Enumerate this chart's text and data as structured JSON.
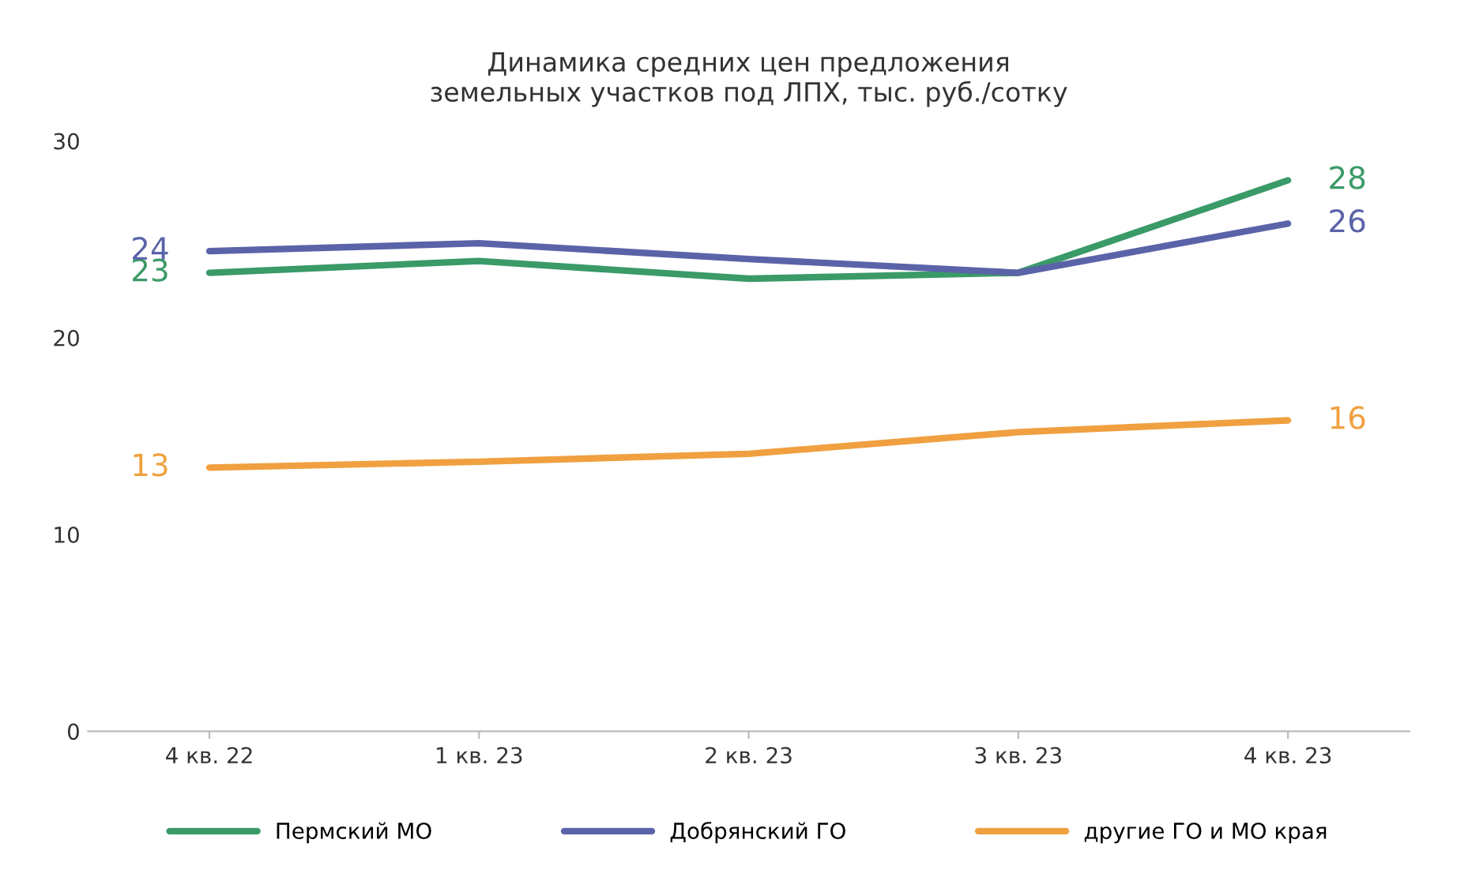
{
  "chart_data": {
    "type": "line",
    "title": "Динамика средних цен предложения\nземельных участков под ЛПХ, тыс. руб./сотку",
    "categories": [
      "4 кв. 22",
      "1 кв. 23",
      "2 кв. 23",
      "3 кв. 23",
      "4 кв. 23"
    ],
    "series": [
      {
        "name": "Пермский МО",
        "color": "#3a9a68",
        "values": [
          23.3,
          23.9,
          23.0,
          23.3,
          28.0
        ],
        "value_labels": [
          "23",
          null,
          null,
          null,
          "28"
        ]
      },
      {
        "name": "Добрянский ГО",
        "color": "#5b63a8",
        "values": [
          24.4,
          24.8,
          24.0,
          23.3,
          25.8
        ],
        "value_labels": [
          "24",
          null,
          null,
          null,
          "26"
        ]
      },
      {
        "name": "другие ГО и МО края",
        "color": "#f0a040",
        "values": [
          13.4,
          13.7,
          14.1,
          15.2,
          15.8
        ],
        "value_labels": [
          "13",
          null,
          null,
          null,
          "16"
        ]
      }
    ],
    "ylim": [
      0,
      30
    ],
    "yticks": [
      0,
      10,
      20,
      30
    ],
    "grid": false,
    "legend": "bottom",
    "marker": "none",
    "line_style": "solid"
  }
}
